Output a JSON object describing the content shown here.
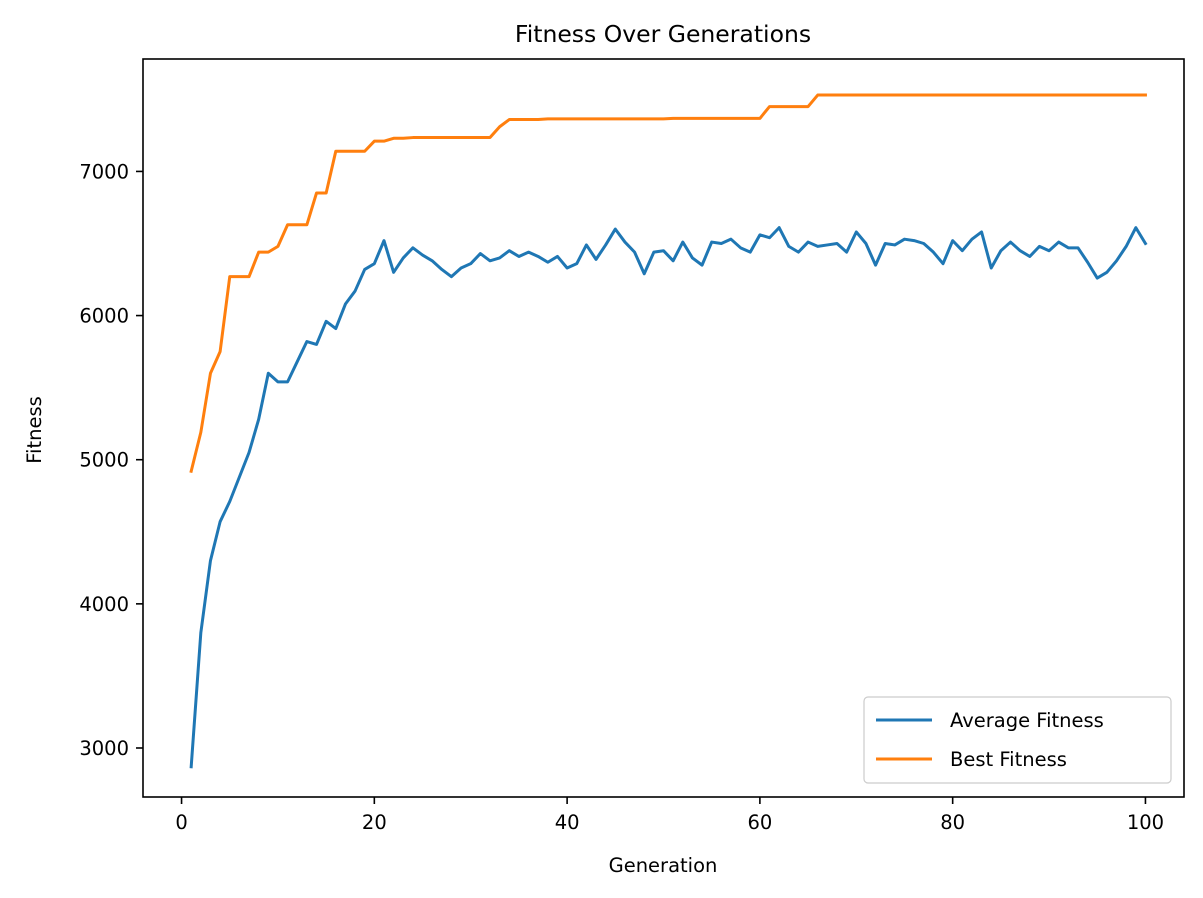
{
  "chart_data": {
    "type": "line",
    "title": "Fitness Over Generations",
    "xlabel": "Generation",
    "ylabel": "Fitness",
    "xlim": [
      -4,
      104
    ],
    "ylim": [
      2660,
      7780
    ],
    "xticks": [
      0,
      20,
      40,
      60,
      80,
      100
    ],
    "yticks": [
      3000,
      4000,
      5000,
      6000,
      7000
    ],
    "grid": false,
    "legend_position": "lower right",
    "series": [
      {
        "name": "Average Fitness",
        "color": "#1f77b4",
        "x": [
          1,
          2,
          3,
          4,
          5,
          6,
          7,
          8,
          9,
          10,
          11,
          12,
          13,
          14,
          15,
          16,
          17,
          18,
          19,
          20,
          21,
          22,
          23,
          24,
          25,
          26,
          27,
          28,
          29,
          30,
          31,
          32,
          33,
          34,
          35,
          36,
          37,
          38,
          39,
          40,
          41,
          42,
          43,
          44,
          45,
          46,
          47,
          48,
          49,
          50,
          51,
          52,
          53,
          54,
          55,
          56,
          57,
          58,
          59,
          60,
          61,
          62,
          63,
          64,
          65,
          66,
          67,
          68,
          69,
          70,
          71,
          72,
          73,
          74,
          75,
          76,
          77,
          78,
          79,
          80,
          81,
          82,
          83,
          84,
          85,
          86,
          87,
          88,
          89,
          90,
          91,
          92,
          93,
          94,
          95,
          96,
          97,
          98,
          99,
          100
        ],
        "values": [
          2870,
          3800,
          4300,
          4570,
          4710,
          4880,
          5050,
          5280,
          5600,
          5540,
          5540,
          5680,
          5820,
          5800,
          5960,
          5910,
          6080,
          6170,
          6320,
          6360,
          6520,
          6300,
          6400,
          6470,
          6420,
          6380,
          6320,
          6270,
          6330,
          6360,
          6430,
          6380,
          6400,
          6450,
          6410,
          6440,
          6410,
          6370,
          6410,
          6330,
          6360,
          6490,
          6390,
          6490,
          6600,
          6510,
          6440,
          6290,
          6440,
          6450,
          6380,
          6510,
          6400,
          6350,
          6510,
          6500,
          6530,
          6470,
          6440,
          6560,
          6540,
          6610,
          6480,
          6440,
          6510,
          6480,
          6490,
          6500,
          6440,
          6580,
          6500,
          6350,
          6500,
          6490,
          6530,
          6520,
          6500,
          6440,
          6360,
          6520,
          6450,
          6530,
          6580,
          6330,
          6450,
          6510,
          6450,
          6410,
          6480,
          6450,
          6510,
          6470,
          6470,
          6370,
          6260,
          6300,
          6380,
          6480,
          6610,
          6500
        ]
      },
      {
        "name": "Best Fitness",
        "color": "#ff7f0e",
        "x": [
          1,
          2,
          3,
          4,
          5,
          6,
          7,
          8,
          9,
          10,
          11,
          12,
          13,
          14,
          15,
          16,
          17,
          18,
          19,
          20,
          21,
          22,
          23,
          24,
          25,
          26,
          27,
          28,
          29,
          30,
          31,
          32,
          33,
          34,
          35,
          36,
          37,
          38,
          39,
          40,
          41,
          42,
          43,
          44,
          45,
          46,
          47,
          48,
          49,
          50,
          51,
          52,
          53,
          54,
          55,
          56,
          57,
          58,
          59,
          60,
          61,
          62,
          63,
          64,
          65,
          66,
          67,
          68,
          69,
          70,
          71,
          72,
          73,
          74,
          75,
          76,
          77,
          78,
          79,
          80,
          81,
          82,
          83,
          84,
          85,
          86,
          87,
          88,
          89,
          90,
          91,
          92,
          93,
          94,
          95,
          96,
          97,
          98,
          99,
          100
        ],
        "values": [
          4920,
          5190,
          5600,
          5750,
          6270,
          6270,
          6270,
          6440,
          6440,
          6480,
          6630,
          6630,
          6630,
          6850,
          6850,
          7140,
          7140,
          7140,
          7140,
          7210,
          7210,
          7230,
          7230,
          7235,
          7235,
          7235,
          7235,
          7235,
          7235,
          7235,
          7235,
          7235,
          7310,
          7360,
          7360,
          7360,
          7360,
          7365,
          7365,
          7365,
          7365,
          7365,
          7365,
          7365,
          7365,
          7365,
          7365,
          7365,
          7365,
          7365,
          7368,
          7368,
          7368,
          7368,
          7368,
          7368,
          7368,
          7368,
          7368,
          7368,
          7450,
          7450,
          7450,
          7450,
          7450,
          7530,
          7530,
          7530,
          7530,
          7530,
          7530,
          7530,
          7530,
          7530,
          7530,
          7530,
          7530,
          7530,
          7530,
          7530,
          7530,
          7530,
          7530,
          7530,
          7530,
          7530,
          7530,
          7530,
          7530,
          7530,
          7530,
          7530,
          7530,
          7530,
          7530,
          7530,
          7530,
          7530,
          7530,
          7530
        ]
      }
    ]
  }
}
